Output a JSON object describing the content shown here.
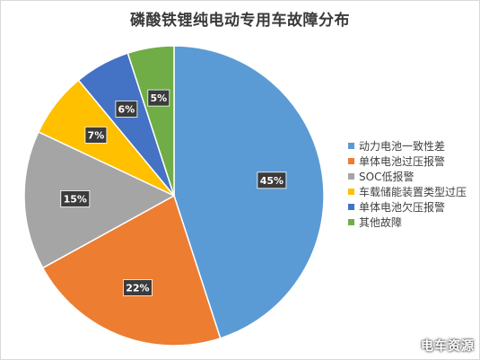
{
  "chart_data": {
    "type": "pie",
    "title": "磷酸铁锂纯电动专用车故障分布",
    "categories": [
      "动力电池一致性差",
      "单体电池过压报警",
      "SOC低报警",
      "车载储能装置类型过压",
      "单体电池欠压报警",
      "其他故障"
    ],
    "values": [
      45,
      22,
      15,
      7,
      6,
      5
    ],
    "data_labels": [
      "45%",
      "22%",
      "15%",
      "7%",
      "6%",
      "5%"
    ],
    "colors": [
      "#5B9BD5",
      "#ED7D31",
      "#A5A5A5",
      "#FFC000",
      "#4472C4",
      "#70AD47"
    ],
    "legend_position": "right",
    "start_angle_deg": 0,
    "direction": "clockwise"
  },
  "watermark": "电车资源"
}
